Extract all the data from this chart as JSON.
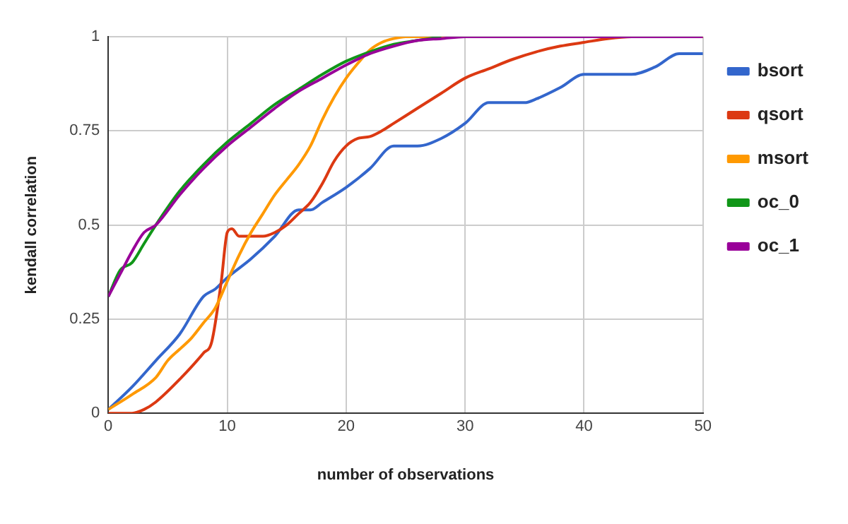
{
  "chart_data": {
    "type": "line",
    "xlabel": "number of observations",
    "ylabel": "kendall correlation",
    "xlim": [
      0,
      50
    ],
    "xticks": [
      0,
      10,
      20,
      30,
      40,
      50
    ],
    "ylim": [
      0,
      1
    ],
    "yticks": [
      0,
      0.25,
      0.5,
      0.75,
      1
    ],
    "grid": true,
    "legend": "top right",
    "marker": "none",
    "line_style": "solid",
    "series": [
      {
        "name": "bsort",
        "color": "#3366cc",
        "x": [
          0,
          2,
          4,
          6,
          8,
          9,
          10,
          12,
          14,
          16,
          17,
          18,
          20,
          22,
          24,
          26,
          28,
          30,
          32,
          34,
          35,
          36,
          38,
          40,
          42,
          44,
          46,
          48,
          50
        ],
        "values": [
          0.01,
          0.07,
          0.14,
          0.21,
          0.31,
          0.33,
          0.36,
          0.41,
          0.47,
          0.54,
          0.54,
          0.56,
          0.6,
          0.65,
          0.71,
          0.71,
          0.73,
          0.77,
          0.825,
          0.825,
          0.825,
          0.835,
          0.865,
          0.9,
          0.9,
          0.9,
          0.92,
          0.955,
          0.955
        ]
      },
      {
        "name": "qsort",
        "color": "#dc3912",
        "x": [
          0,
          2,
          3,
          4,
          6,
          8,
          8.7,
          9.5,
          10,
          10.4,
          11,
          12,
          13,
          14,
          15,
          16,
          17,
          18,
          19,
          20,
          21,
          22,
          23,
          24,
          26,
          28,
          30,
          32,
          34,
          36,
          38,
          40,
          42,
          44,
          50
        ],
        "values": [
          0,
          0,
          0.01,
          0.03,
          0.09,
          0.16,
          0.19,
          0.35,
          0.48,
          0.49,
          0.47,
          0.47,
          0.47,
          0.48,
          0.5,
          0.53,
          0.56,
          0.61,
          0.67,
          0.71,
          0.73,
          0.735,
          0.75,
          0.77,
          0.81,
          0.85,
          0.89,
          0.915,
          0.94,
          0.96,
          0.975,
          0.985,
          0.995,
          1,
          1
        ]
      },
      {
        "name": "msort",
        "color": "#ff9900",
        "x": [
          0,
          2,
          4,
          5,
          6,
          7,
          8,
          9,
          10,
          11,
          12,
          13,
          14,
          15,
          16,
          17,
          18,
          19,
          20,
          21,
          22,
          23,
          24,
          25,
          50
        ],
        "values": [
          0.01,
          0.05,
          0.095,
          0.14,
          0.17,
          0.2,
          0.24,
          0.28,
          0.35,
          0.42,
          0.48,
          0.53,
          0.58,
          0.62,
          0.66,
          0.71,
          0.78,
          0.84,
          0.89,
          0.93,
          0.965,
          0.985,
          0.995,
          1,
          1
        ]
      },
      {
        "name": "oc_0",
        "color": "#109618",
        "x": [
          0,
          1,
          2,
          3,
          4,
          6,
          8,
          10,
          12,
          14,
          16,
          18,
          20,
          22,
          24,
          26,
          28
        ],
        "values": [
          0.31,
          0.38,
          0.4,
          0.45,
          0.5,
          0.59,
          0.66,
          0.72,
          0.77,
          0.82,
          0.86,
          0.9,
          0.935,
          0.96,
          0.98,
          0.99,
          1
        ]
      },
      {
        "name": "oc_1",
        "color": "#990099",
        "x": [
          0,
          1,
          2,
          3,
          4,
          6,
          8,
          10,
          12,
          14,
          16,
          18,
          20,
          22,
          24,
          26,
          28,
          30,
          50
        ],
        "values": [
          0.31,
          0.37,
          0.43,
          0.48,
          0.5,
          0.58,
          0.65,
          0.71,
          0.76,
          0.81,
          0.855,
          0.89,
          0.925,
          0.955,
          0.975,
          0.99,
          0.995,
          1,
          1
        ]
      }
    ]
  }
}
